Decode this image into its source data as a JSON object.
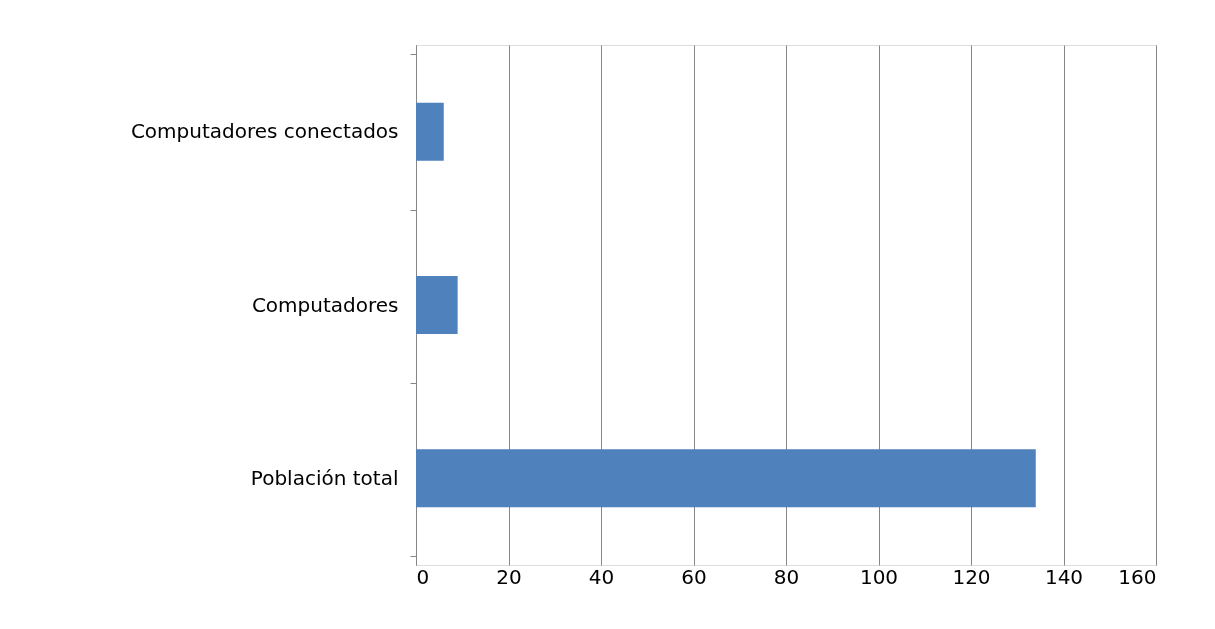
{
  "chart_data": {
    "type": "bar",
    "orientation": "horizontal",
    "categories": [
      "Computadores conectados",
      "Computadores",
      "Población total"
    ],
    "values": [
      6,
      9,
      134
    ],
    "color": "#4f81bd",
    "xlim": [
      0,
      160
    ],
    "xticks": [
      0,
      20,
      40,
      60,
      80,
      100,
      120,
      140,
      160
    ],
    "grid": "x"
  }
}
